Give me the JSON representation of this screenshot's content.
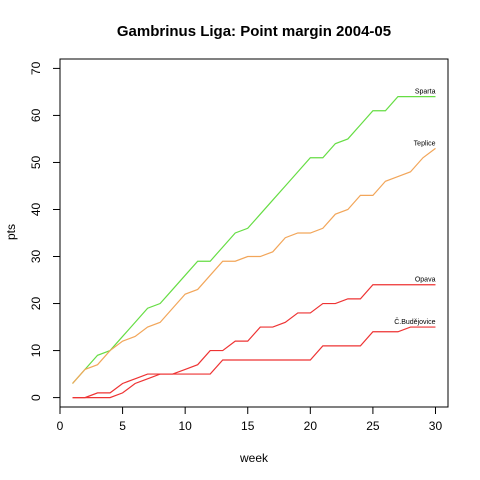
{
  "chart_data": {
    "type": "line",
    "title": "Gambrinus Liga: Point margin 2004-05",
    "xlabel": "week",
    "ylabel": "pts",
    "xlim": [
      0,
      31
    ],
    "ylim": [
      -2,
      72
    ],
    "xticks": [
      0,
      5,
      10,
      15,
      20,
      25,
      30
    ],
    "yticks": [
      0,
      10,
      20,
      30,
      40,
      50,
      60,
      70
    ],
    "grid": false,
    "legend": "none",
    "x": [
      1,
      2,
      3,
      4,
      5,
      6,
      7,
      8,
      9,
      10,
      11,
      12,
      13,
      14,
      15,
      16,
      17,
      18,
      19,
      20,
      21,
      22,
      23,
      24,
      25,
      26,
      27,
      28,
      29,
      30
    ],
    "series": [
      {
        "name": "Sparta",
        "color": "#66dd44",
        "values": [
          3,
          6,
          9,
          10,
          13,
          16,
          19,
          20,
          23,
          26,
          29,
          29,
          32,
          35,
          36,
          39,
          42,
          45,
          48,
          51,
          51,
          54,
          55,
          58,
          61,
          61,
          64,
          64,
          64,
          64
        ]
      },
      {
        "name": "Teplice",
        "color": "#f2a65a",
        "values": [
          3,
          6,
          7,
          10,
          12,
          13,
          15,
          16,
          19,
          22,
          23,
          26,
          29,
          29,
          30,
          30,
          31,
          34,
          35,
          35,
          36,
          39,
          40,
          43,
          43,
          46,
          47,
          48,
          51,
          53
        ]
      },
      {
        "name": "Opava",
        "color": "#ee3333",
        "values": [
          0,
          0,
          1,
          1,
          3,
          4,
          5,
          5,
          5,
          6,
          7,
          10,
          10,
          12,
          12,
          15,
          15,
          16,
          18,
          18,
          20,
          20,
          21,
          21,
          24,
          24,
          24,
          24,
          24,
          24
        ]
      },
      {
        "name": "Č.Budějovice",
        "color": "#ee3333",
        "values": [
          0,
          0,
          0,
          0,
          1,
          3,
          4,
          5,
          5,
          5,
          5,
          5,
          8,
          8,
          8,
          8,
          8,
          8,
          8,
          8,
          11,
          11,
          11,
          11,
          14,
          14,
          14,
          15,
          15,
          15
        ]
      }
    ]
  }
}
